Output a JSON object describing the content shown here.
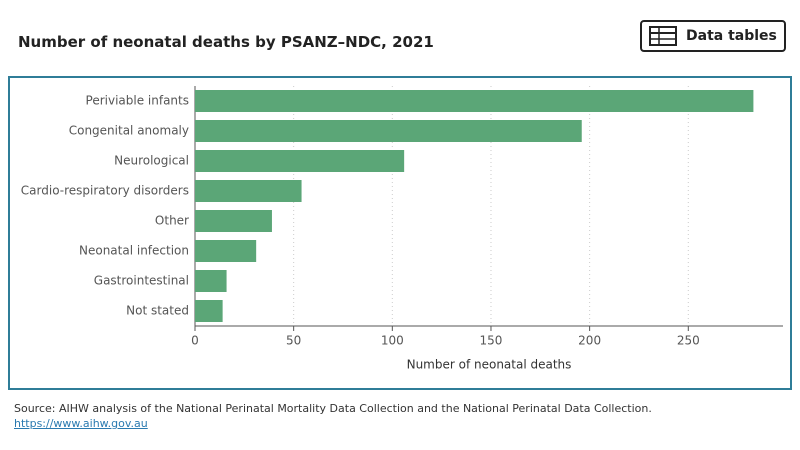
{
  "chart_data": {
    "type": "barh",
    "title": "Number of neonatal deaths by PSANZ–NDC, 2021",
    "categories": [
      "Periviable infants",
      "Congenital anomaly",
      "Neurological",
      "Cardio-respiratory disorders",
      "Other",
      "Neonatal infection",
      "Gastrointestinal",
      "Not stated"
    ],
    "values": [
      283,
      196,
      106,
      54,
      39,
      31,
      16,
      14
    ],
    "color": "#5ba677",
    "xlabel": "Number of neonatal deaths",
    "xlim": [
      0,
      298
    ],
    "xticks": [
      0,
      50,
      100,
      150,
      200,
      250
    ],
    "grid": true
  },
  "button": {
    "label": "Data tables"
  },
  "source": "Source: AIHW analysis of the National Perinatal Mortality Data Collection and the National Perinatal Data Collection.",
  "link": "https://www.aihw.gov.au"
}
